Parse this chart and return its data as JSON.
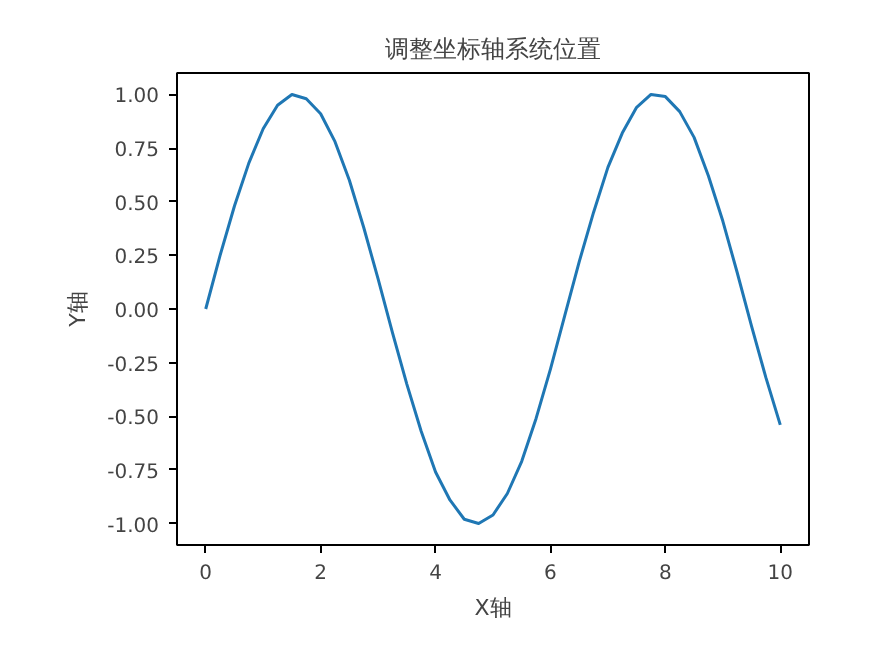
{
  "chart_data": {
    "type": "line",
    "title": "调整坐标轴系统位置",
    "xlabel": "X轴",
    "ylabel": "Y轴",
    "x": [
      0,
      0.25,
      0.5,
      0.75,
      1,
      1.25,
      1.5,
      1.75,
      2,
      2.25,
      2.5,
      2.75,
      3,
      3.25,
      3.5,
      3.75,
      4,
      4.25,
      4.5,
      4.75,
      5,
      5.25,
      5.5,
      5.75,
      6,
      6.25,
      6.5,
      6.75,
      7,
      7.25,
      7.5,
      7.75,
      8,
      8.25,
      8.5,
      8.75,
      9,
      9.25,
      9.5,
      9.75,
      10
    ],
    "series": [
      {
        "color": "#1f77b4",
        "values": [
          0,
          0.25,
          0.48,
          0.68,
          0.84,
          0.95,
          1.0,
          0.98,
          0.91,
          0.78,
          0.6,
          0.38,
          0.14,
          -0.11,
          -0.35,
          -0.57,
          -0.76,
          -0.89,
          -0.98,
          -1.0,
          -0.96,
          -0.86,
          -0.71,
          -0.51,
          -0.28,
          -0.03,
          0.22,
          0.45,
          0.66,
          0.82,
          0.94,
          1.0,
          0.99,
          0.92,
          0.8,
          0.62,
          0.41,
          0.17,
          -0.08,
          -0.32,
          -0.54
        ]
      }
    ],
    "xlim": [
      -0.5,
      10.5
    ],
    "ylim": [
      -1.1,
      1.1
    ],
    "xticks": [
      0,
      2,
      4,
      6,
      8,
      10
    ],
    "yticks": [
      {
        "value": -1,
        "label": "-1.00"
      },
      {
        "value": -0.75,
        "label": "-0.75"
      },
      {
        "value": -0.5,
        "label": "-0.50"
      },
      {
        "value": -0.25,
        "label": "-0.25"
      },
      {
        "value": 0,
        "label": "0.00"
      },
      {
        "value": 0.25,
        "label": "0.25"
      },
      {
        "value": 0.5,
        "label": "0.50"
      },
      {
        "value": 0.75,
        "label": "0.75"
      },
      {
        "value": 1,
        "label": "1.00"
      }
    ],
    "grid": false,
    "line_style": "solid"
  }
}
